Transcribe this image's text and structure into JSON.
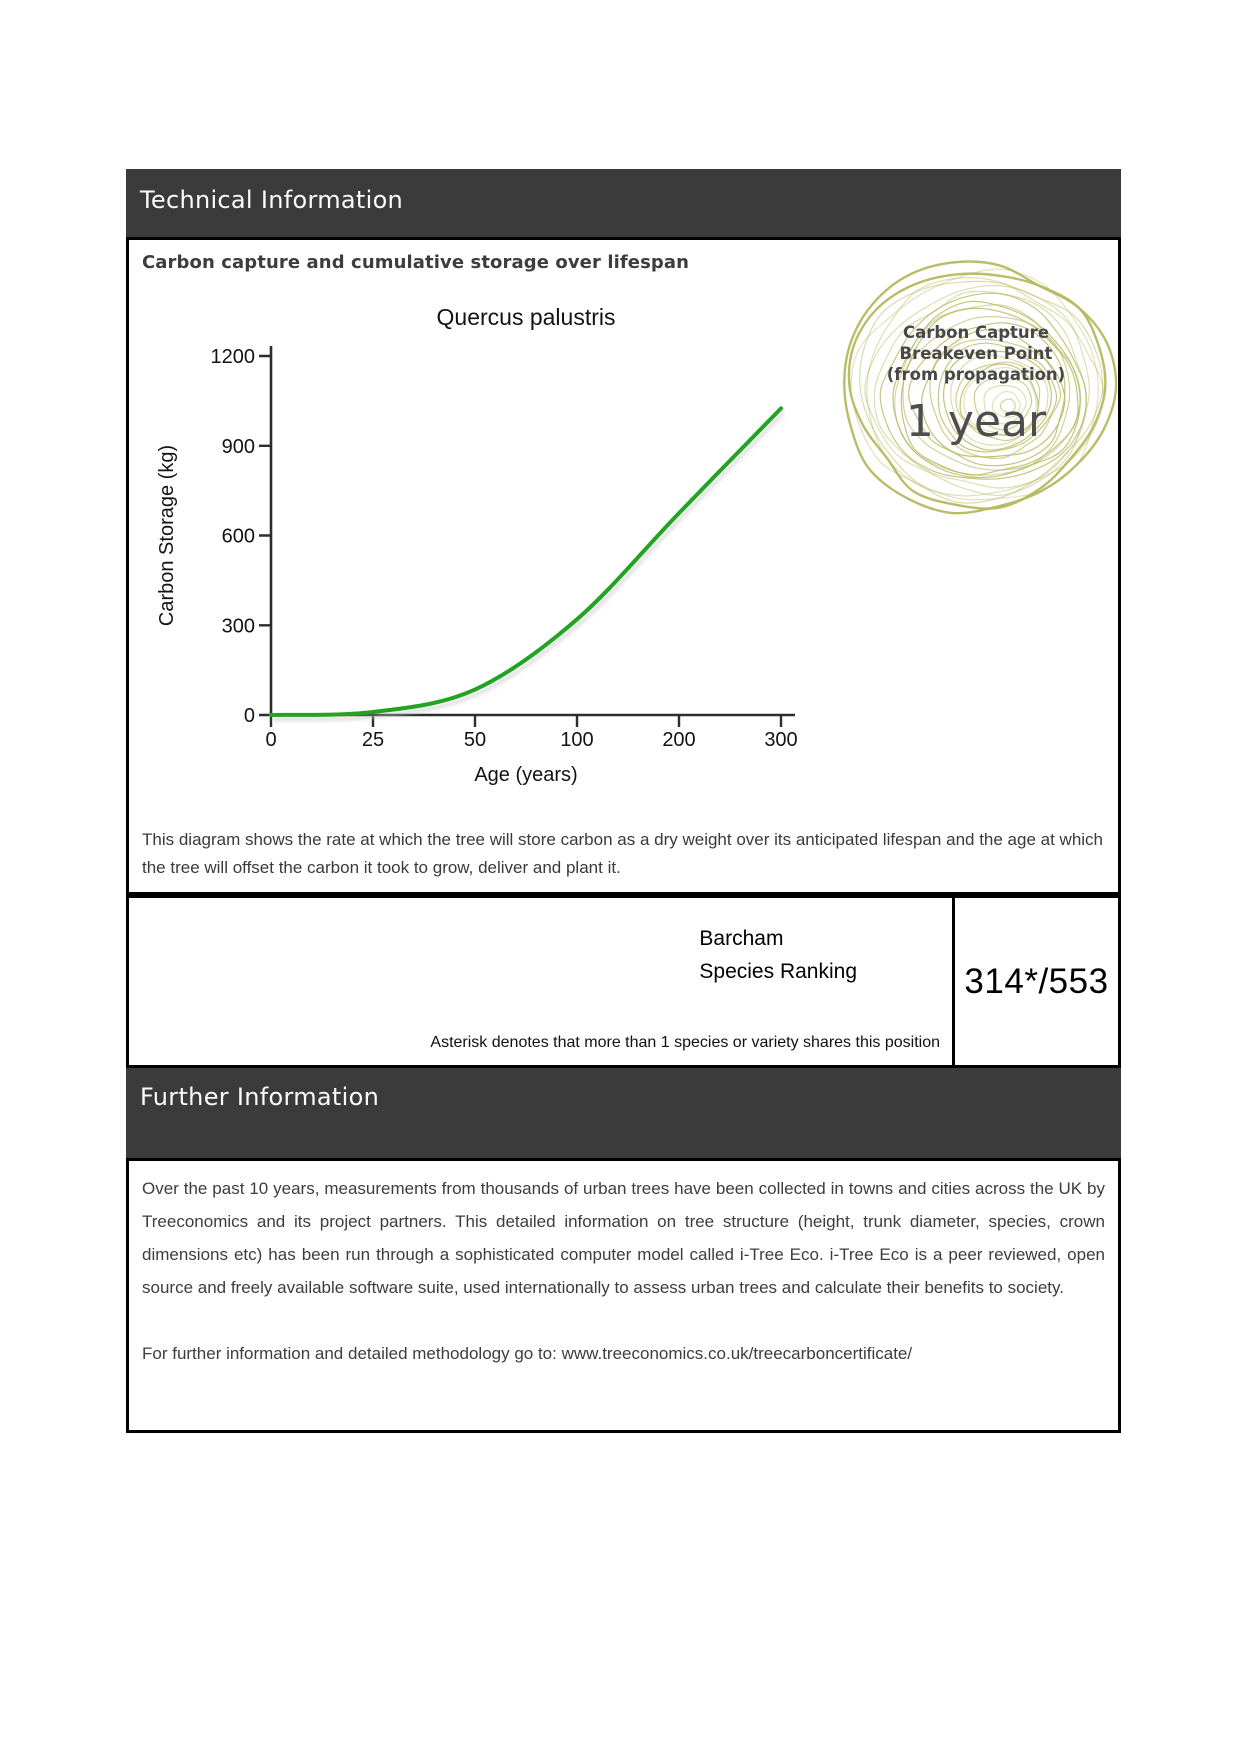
{
  "technical": {
    "header": "Technical Information",
    "chart_section_title": "Carbon capture and cumulative storage over lifespan",
    "description": "This diagram shows the rate at which the tree will store carbon as a dry weight over its anticipated lifespan and the age at which the tree will offset the carbon it took to grow, deliver and plant it."
  },
  "chart_data": {
    "type": "line",
    "title": "Quercus palustris",
    "xlabel": "Age (years)",
    "ylabel": "Carbon Storage (kg)",
    "categories": [
      0,
      25,
      50,
      100,
      200,
      300
    ],
    "values": [
      0,
      10,
      85,
      320,
      675,
      1025
    ],
    "yticks": [
      0,
      300,
      600,
      900,
      1200
    ],
    "ylim": [
      0,
      1200
    ],
    "x_scale": "category-equal-spacing",
    "grid": false,
    "legend": false,
    "line_color": "#21a421"
  },
  "badge": {
    "line1": "Carbon Capture",
    "line2": "Breakeven Point",
    "line3": "(from propagation)",
    "value": "1 year",
    "ring_color": "#b5b95f"
  },
  "ranking": {
    "title_line1": "Barcham",
    "title_line2": "Species Ranking",
    "value": "314*/553",
    "note": "Asterisk denotes that more than 1 species or variety shares this position"
  },
  "further": {
    "header": "Further Information",
    "paragraph": "Over the past 10 years, measurements from thousands of urban trees have been collected in towns and cities across the UK by Treeconomics and its project partners. This detailed information on tree structure (height, trunk diameter, species, crown dimensions etc) has been run through a sophisticated computer model called i-Tree Eco. i-Tree Eco is a peer reviewed, open source and freely available software suite, used internationally to assess urban trees and calculate their benefits to society.",
    "link_line": "For further information and detailed methodology go to: www.treeconomics.co.uk/treecarboncertificate/"
  }
}
